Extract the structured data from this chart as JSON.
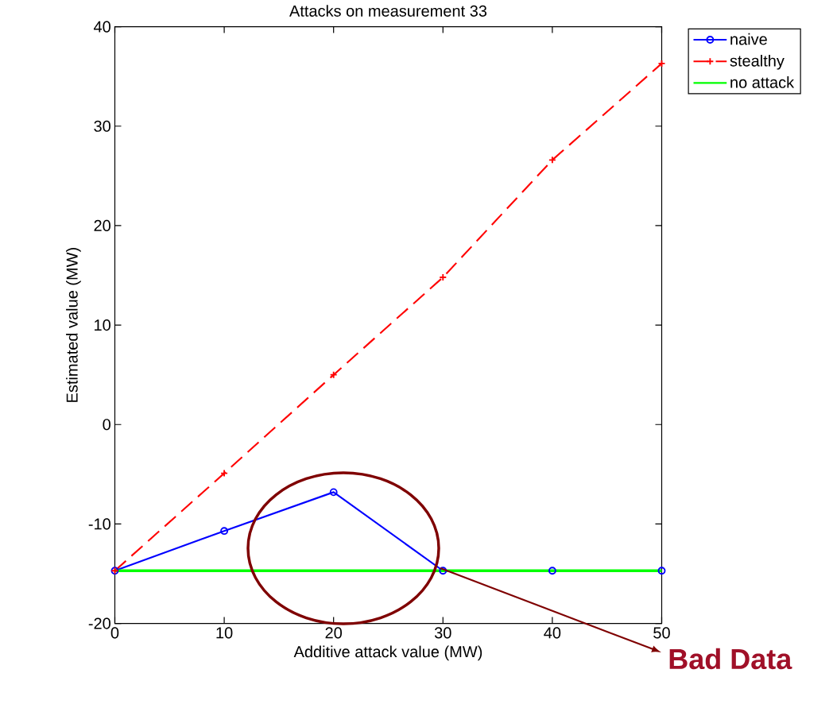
{
  "chart_data": {
    "type": "line",
    "title": "Attacks on measurement 33",
    "xlabel": "Additive attack value (MW)",
    "ylabel": "Estimated value (MW)",
    "x": [
      0,
      10,
      20,
      30,
      40,
      50
    ],
    "series": [
      {
        "name": "naive",
        "color": "#0000ff",
        "marker": "circle",
        "line_style": "solid",
        "values": [
          -14.7,
          -10.7,
          -6.8,
          -14.7,
          -14.7,
          -14.7
        ]
      },
      {
        "name": "stealthy",
        "color": "#ff0000",
        "marker": "cross",
        "line_style": "dashed",
        "values": [
          -14.7,
          -4.9,
          5.0,
          14.8,
          26.6,
          36.3
        ]
      },
      {
        "name": "no attack",
        "color": "#00ff00",
        "marker": "none",
        "line_style": "solid",
        "x": [
          0,
          50
        ],
        "values": [
          -14.7,
          -14.7
        ]
      }
    ],
    "xlim": [
      0,
      50
    ],
    "ylim": [
      -20,
      40
    ],
    "xticks": [
      0,
      10,
      20,
      30,
      40,
      50
    ],
    "yticks": [
      -20,
      -10,
      0,
      10,
      20,
      30,
      40
    ],
    "grid": false,
    "legend": "top right",
    "annotations": [
      "Bad Data"
    ]
  }
}
